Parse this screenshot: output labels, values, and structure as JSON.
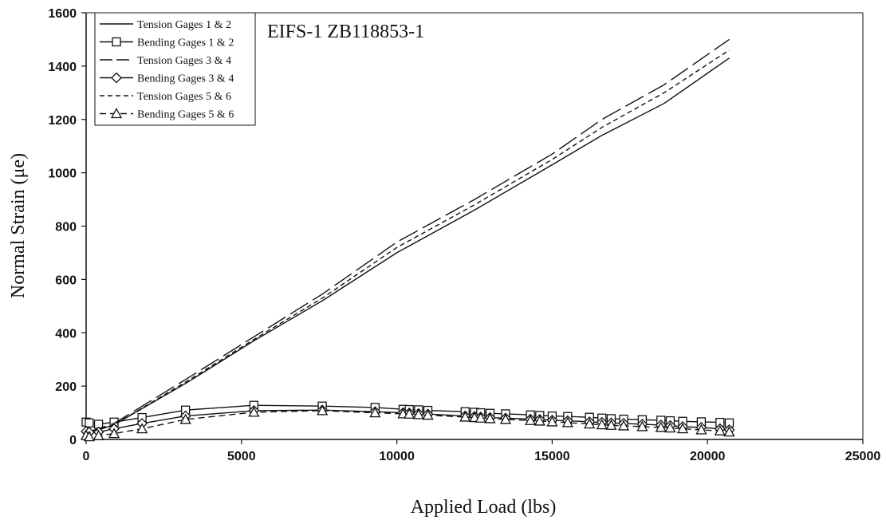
{
  "chart_data": {
    "type": "line",
    "title": "EIFS-1 ZB118853-1",
    "xlabel": "Applied Load (lbs)",
    "ylabel": "Normal Strain (μe)",
    "xlim": [
      0,
      25000
    ],
    "ylim": [
      0,
      1600
    ],
    "x_ticks": [
      0,
      5000,
      10000,
      15000,
      20000,
      25000
    ],
    "y_ticks": [
      0,
      200,
      400,
      600,
      800,
      1000,
      1200,
      1400,
      1600
    ],
    "grid": false,
    "legend_position": "top-left",
    "series": [
      {
        "name": "Tension Gages 1 & 2",
        "line": "solid",
        "marker": "none",
        "x": [
          0,
          900,
          3200,
          5400,
          7600,
          10000,
          12500,
          15000,
          16600,
          18600,
          20700
        ],
        "y": [
          20,
          55,
          210,
          370,
          520,
          700,
          860,
          1030,
          1140,
          1260,
          1430
        ]
      },
      {
        "name": "Bending Gages 1 & 2",
        "line": "solid",
        "marker": "square",
        "x": [
          0,
          100,
          400,
          900,
          1800,
          3200,
          5400,
          7600,
          9300,
          10200,
          10400,
          10700,
          11000,
          12200,
          12500,
          12700,
          13000,
          13500,
          14300,
          14600,
          15000,
          15500,
          16200,
          16600,
          16900,
          17300,
          17900,
          18500,
          18800,
          19200,
          19800,
          20400,
          20700
        ],
        "y": [
          65,
          62,
          57,
          65,
          82,
          110,
          128,
          125,
          120,
          113,
          112,
          111,
          109,
          104,
          102,
          100,
          98,
          96,
          92,
          90,
          88,
          86,
          83,
          80,
          78,
          76,
          74,
          72,
          70,
          68,
          66,
          64,
          62
        ]
      },
      {
        "name": "Tension Gages 3 & 4",
        "line": "longdash",
        "marker": "none",
        "x": [
          0,
          900,
          3200,
          5400,
          7600,
          10000,
          12500,
          15000,
          16600,
          18600,
          20700
        ],
        "y": [
          25,
          60,
          225,
          385,
          545,
          740,
          900,
          1070,
          1200,
          1330,
          1500
        ]
      },
      {
        "name": "Bending Gages 3 & 4",
        "line": "solid",
        "marker": "diamond",
        "x": [
          0,
          100,
          400,
          900,
          1800,
          3200,
          5400,
          7600,
          9300,
          10200,
          10400,
          10700,
          11000,
          12200,
          12500,
          12700,
          13000,
          13500,
          14300,
          14600,
          15000,
          15500,
          16200,
          16600,
          16900,
          17300,
          17900,
          18500,
          18800,
          19200,
          19800,
          20400,
          20700
        ],
        "y": [
          30,
          27,
          28,
          40,
          60,
          88,
          108,
          110,
          104,
          100,
          99,
          97,
          95,
          88,
          86,
          84,
          82,
          80,
          76,
          75,
          72,
          70,
          66,
          64,
          62,
          60,
          57,
          54,
          52,
          48,
          45,
          40,
          36
        ]
      },
      {
        "name": "Tension Gages 5 & 6",
        "line": "shortdash",
        "marker": "none",
        "x": [
          0,
          900,
          3200,
          5400,
          7600,
          10000,
          12500,
          15000,
          16600,
          18600,
          20700
        ],
        "y": [
          22,
          55,
          215,
          375,
          530,
          720,
          880,
          1050,
          1170,
          1300,
          1460
        ]
      },
      {
        "name": "Bending Gages 5 & 6",
        "line": "dashed",
        "marker": "triangle",
        "x": [
          0,
          100,
          400,
          900,
          1800,
          3200,
          5400,
          7600,
          9300,
          10200,
          10400,
          10700,
          11000,
          12200,
          12500,
          12700,
          13000,
          13500,
          14300,
          14600,
          15000,
          15500,
          16200,
          16600,
          16900,
          17300,
          17900,
          18500,
          18800,
          19200,
          19800,
          20400,
          20700
        ],
        "y": [
          15,
          10,
          14,
          22,
          40,
          75,
          102,
          108,
          100,
          96,
          95,
          93,
          91,
          84,
          82,
          80,
          78,
          75,
          71,
          69,
          66,
          63,
          58,
          55,
          53,
          51,
          48,
          45,
          43,
          40,
          36,
          32,
          28
        ]
      }
    ]
  }
}
